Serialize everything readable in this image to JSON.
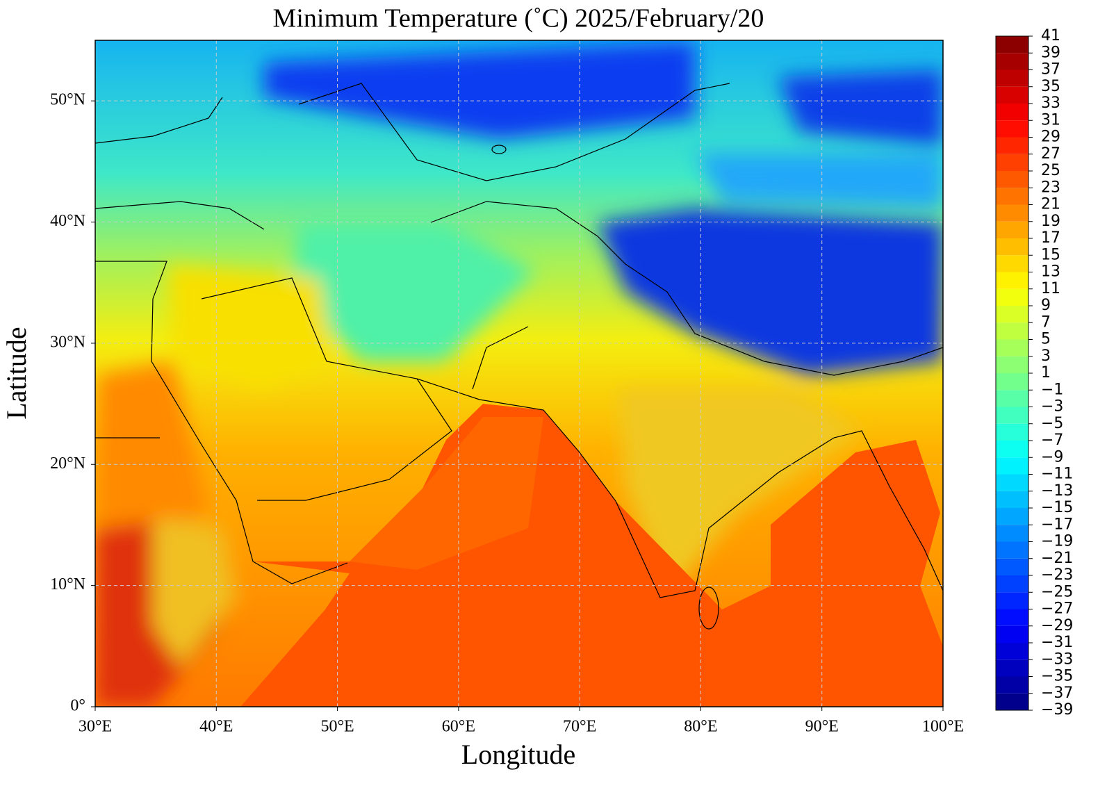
{
  "chart_data": {
    "type": "contour",
    "title": "Minimum Temperature (˚C)  2025/February/20",
    "x_label": "Longitude",
    "y_label": "Latitude",
    "xlim": [
      30,
      100
    ],
    "ylim": [
      0,
      55
    ],
    "xticks": [
      {
        "value": 30,
        "label": "30°E"
      },
      {
        "value": 40,
        "label": "40°E"
      },
      {
        "value": 50,
        "label": "50°E"
      },
      {
        "value": 60,
        "label": "60°E"
      },
      {
        "value": 70,
        "label": "70°E"
      },
      {
        "value": 80,
        "label": "80°E"
      },
      {
        "value": 90,
        "label": "90°E"
      },
      {
        "value": 100,
        "label": "100°E"
      }
    ],
    "yticks": [
      {
        "value": 0,
        "label": "0°"
      },
      {
        "value": 10,
        "label": "10°N"
      },
      {
        "value": 20,
        "label": "20°N"
      },
      {
        "value": 30,
        "label": "30°N"
      },
      {
        "value": 40,
        "label": "40°N"
      },
      {
        "value": 50,
        "label": "50°N"
      }
    ],
    "grid": true,
    "colormap": "jet",
    "colorbar": {
      "lim": [
        -39,
        41
      ],
      "ticks": [
        {
          "value": -39,
          "label": "−39"
        },
        {
          "value": -37,
          "label": "−37"
        },
        {
          "value": -35,
          "label": "−35"
        },
        {
          "value": -33,
          "label": "−33"
        },
        {
          "value": -31,
          "label": "−31"
        },
        {
          "value": -29,
          "label": "−29"
        },
        {
          "value": -27,
          "label": "−27"
        },
        {
          "value": -25,
          "label": "−25"
        },
        {
          "value": -23,
          "label": "−23"
        },
        {
          "value": -21,
          "label": "−21"
        },
        {
          "value": -19,
          "label": "−19"
        },
        {
          "value": -17,
          "label": "−17"
        },
        {
          "value": -15,
          "label": "−15"
        },
        {
          "value": -13,
          "label": "−13"
        },
        {
          "value": -11,
          "label": "−11"
        },
        {
          "value": -9,
          "label": "−9"
        },
        {
          "value": -7,
          "label": "−7"
        },
        {
          "value": -5,
          "label": "−5"
        },
        {
          "value": -3,
          "label": "−3"
        },
        {
          "value": -1,
          "label": "−1"
        },
        1,
        3,
        5,
        7,
        9,
        11,
        13,
        15,
        17,
        19,
        21,
        23,
        25,
        27,
        29,
        31,
        33,
        35,
        37,
        39,
        41
      ]
    }
  }
}
